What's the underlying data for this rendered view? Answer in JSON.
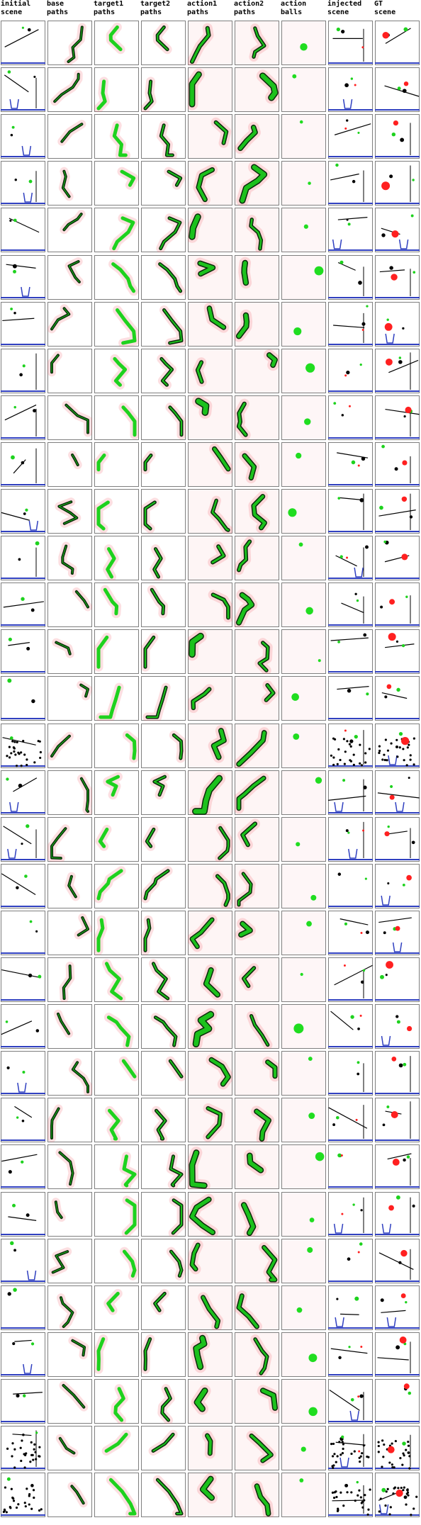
{
  "columns": [
    {
      "key": "initial",
      "label": "initial\nscene"
    },
    {
      "key": "base",
      "label": "base\npaths"
    },
    {
      "key": "target1",
      "label": "target1\npaths"
    },
    {
      "key": "target2",
      "label": "target2\npaths"
    },
    {
      "key": "action1",
      "label": "action1\npaths"
    },
    {
      "key": "action2",
      "label": "action2\npaths"
    },
    {
      "key": "action_balls",
      "label": "action\nballs"
    },
    {
      "key": "injected",
      "label": "injected\nscene"
    },
    {
      "key": "gt",
      "label": "GT\nscene"
    }
  ],
  "colors": {
    "grid_line": "#7f7f7f",
    "path_green": "#1ed21e",
    "path_dark": "#0a2a0a",
    "heat_red": "#f0505a",
    "scene_blue": "#3040c0",
    "scene_black": "#000000",
    "action_red": "#ff2020",
    "action_green": "#20dd20"
  }
}
